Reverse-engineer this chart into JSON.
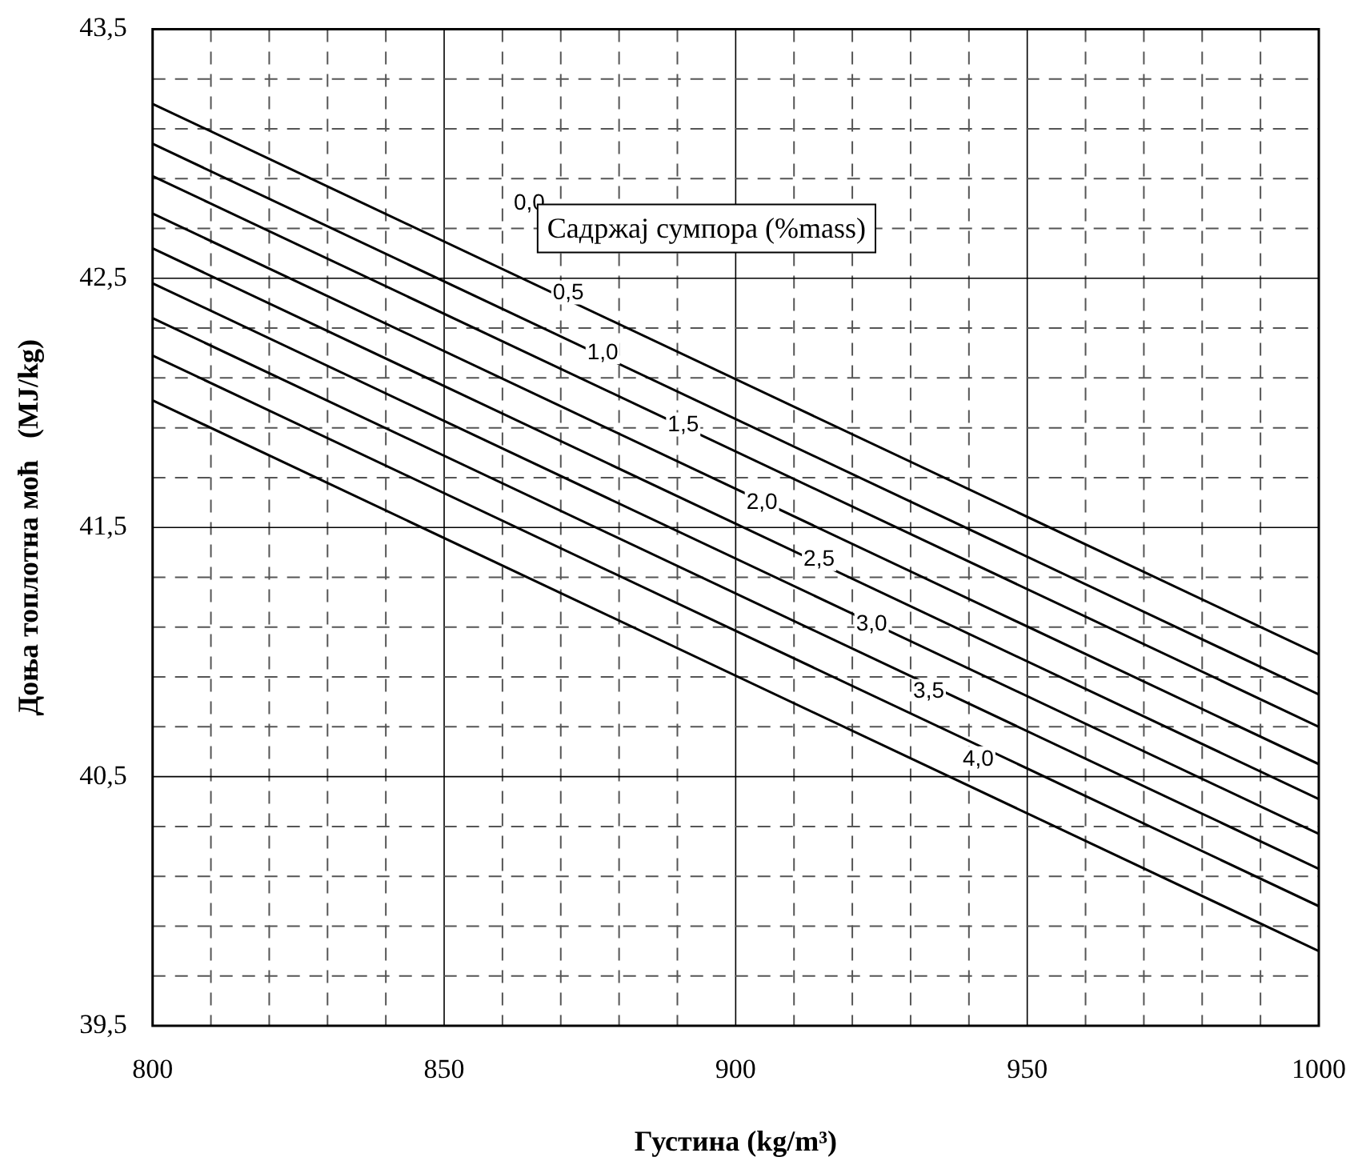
{
  "chart_data": {
    "type": "line",
    "xlabel": "Густина (kg/m³)",
    "ylabel": "Доња топлотна моћ   (MJ/kg)",
    "legend_title": "Садржај сумпора (%mass)",
    "x": [
      800,
      1000
    ],
    "series": [
      {
        "color": "#000000",
        "values": [
          43.2,
          40.99
        ]
      },
      {
        "color": "#000000",
        "values": [
          43.04,
          40.83
        ]
      },
      {
        "color": "#000000",
        "values": [
          42.91,
          40.7
        ]
      },
      {
        "color": "#000000",
        "values": [
          42.76,
          40.55
        ]
      },
      {
        "color": "#000000",
        "values": [
          42.62,
          40.41
        ]
      },
      {
        "color": "#000000",
        "values": [
          42.48,
          40.27
        ]
      },
      {
        "color": "#000000",
        "values": [
          42.34,
          40.13
        ]
      },
      {
        "color": "#000000",
        "values": [
          42.19,
          39.98
        ]
      },
      {
        "color": "#000000",
        "values": [
          42.01,
          39.8
        ]
      }
    ],
    "annotations": [
      {
        "text": "0,0",
        "x": 864.6,
        "y": 42.8
      },
      {
        "text": "0,5",
        "x": 871.3,
        "y": 42.44
      },
      {
        "text": "1,0",
        "x": 877.2,
        "y": 42.2
      },
      {
        "text": "1,5",
        "x": 891.0,
        "y": 41.91
      },
      {
        "text": "2,0",
        "x": 904.5,
        "y": 41.6
      },
      {
        "text": "2,5",
        "x": 914.3,
        "y": 41.37
      },
      {
        "text": "3,0",
        "x": 923.3,
        "y": 41.11
      },
      {
        "text": "3,5",
        "x": 933.1,
        "y": 40.84
      },
      {
        "text": "4,0",
        "x": 941.6,
        "y": 40.57
      }
    ],
    "xlim": [
      800,
      1000
    ],
    "xticks": [
      800,
      {
        "value": 810,
        "label": null
      },
      {
        "value": 820,
        "label": null
      },
      {
        "value": 830,
        "label": null
      },
      {
        "value": 840,
        "label": null
      },
      850,
      {
        "value": 860,
        "label": null
      },
      {
        "value": 870,
        "label": null
      },
      {
        "value": 880,
        "label": null
      },
      {
        "value": 890,
        "label": null
      },
      900,
      {
        "value": 910,
        "label": null
      },
      {
        "value": 920,
        "label": null
      },
      {
        "value": 930,
        "label": null
      },
      {
        "value": 940,
        "label": null
      },
      950,
      {
        "value": 960,
        "label": null
      },
      {
        "value": 970,
        "label": null
      },
      {
        "value": 980,
        "label": null
      },
      {
        "value": 990,
        "label": null
      },
      1000
    ],
    "ylim": [
      39.5,
      43.5
    ],
    "yticks": [
      {
        "value": 39.5,
        "label": "39,5"
      },
      {
        "value": 39.7,
        "label": null
      },
      {
        "value": 39.9,
        "label": null
      },
      {
        "value": 40.1,
        "label": null
      },
      {
        "value": 40.3,
        "label": null
      },
      {
        "value": 40.5,
        "label": "40,5"
      },
      {
        "value": 40.7,
        "label": null
      },
      {
        "value": 40.9,
        "label": null
      },
      {
        "value": 41.1,
        "label": null
      },
      {
        "value": 41.3,
        "label": null
      },
      {
        "value": 41.5,
        "label": "41,5"
      },
      {
        "value": 41.7,
        "label": null
      },
      {
        "value": 41.9,
        "label": null
      },
      {
        "value": 42.1,
        "label": null
      },
      {
        "value": 42.3,
        "label": null
      },
      {
        "value": 42.5,
        "label": "42,5"
      },
      {
        "value": 42.7,
        "label": null
      },
      {
        "value": 42.9,
        "label": null
      },
      {
        "value": 43.1,
        "label": null
      },
      {
        "value": 43.3,
        "label": null
      },
      {
        "value": 43.5,
        "label": "43,5"
      }
    ],
    "grid": true,
    "legend": false,
    "marker": "none",
    "line_style": "solid"
  }
}
